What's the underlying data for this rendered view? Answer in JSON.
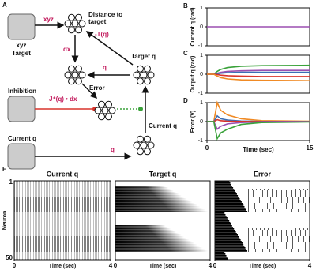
{
  "diagram": {
    "panel": "A",
    "target_box_label": [
      "xyz",
      "Target"
    ],
    "distance_label": [
      "Distance to",
      "target"
    ],
    "target_q_label": "Target q",
    "error_label": "Error",
    "inhibition_label": "Inhibition",
    "current_q_box_label": "Current q",
    "current_q_cluster_label": "Current q",
    "edge_labels": [
      "xyz",
      "-T(q)",
      "dx",
      "q",
      "J⁺(q) • dx",
      "q"
    ]
  },
  "chart_data": [
    {
      "type": "line",
      "panel": "B",
      "ylabel": "Current q (rad)",
      "xlim": [
        0,
        15
      ],
      "ylim": [
        -1,
        1
      ],
      "yticks": [
        -1,
        0,
        1
      ],
      "x": [
        0,
        15
      ],
      "series": [
        {
          "color": "#9b4fb0",
          "values": [
            0,
            0
          ]
        }
      ]
    },
    {
      "type": "line",
      "panel": "C",
      "ylabel": "Output q (rad)",
      "xlim": [
        0,
        15
      ],
      "ylim": [
        -1,
        1
      ],
      "yticks": [
        -1,
        0,
        1
      ],
      "x": [
        0,
        1,
        1.5,
        2,
        3,
        5,
        8,
        15
      ],
      "series": [
        {
          "color": "#3aa23a",
          "values": [
            0,
            0,
            0.15,
            0.25,
            0.35,
            0.42,
            0.45,
            0.47
          ]
        },
        {
          "color": "#9b4fb0",
          "values": [
            0,
            0,
            0.05,
            0.1,
            0.15,
            0.18,
            0.2,
            0.2
          ]
        },
        {
          "color": "#3b6fb6",
          "values": [
            0,
            0,
            0.03,
            0.05,
            0.08,
            0.1,
            0.1,
            0.1
          ]
        },
        {
          "color": "#d9342b",
          "values": [
            0,
            0,
            -0.02,
            -0.05,
            -0.08,
            -0.1,
            -0.12,
            -0.12
          ]
        },
        {
          "color": "#f08a24",
          "values": [
            0,
            0,
            -0.1,
            -0.18,
            -0.25,
            -0.3,
            -0.32,
            -0.34
          ]
        }
      ]
    },
    {
      "type": "line",
      "panel": "D",
      "ylabel": "Error (V)",
      "xlabel": "Time (sec)",
      "xlim": [
        0,
        15
      ],
      "ylim": [
        -1,
        1
      ],
      "yticks": [
        -1,
        0,
        1
      ],
      "xticks": [
        0,
        15
      ],
      "x": [
        0,
        1,
        1.5,
        2,
        3,
        5,
        8,
        15
      ],
      "series": [
        {
          "color": "#f08a24",
          "values": [
            0,
            0,
            1,
            0.6,
            0.35,
            0.15,
            0.05,
            0.02
          ]
        },
        {
          "color": "#3b6fb6",
          "values": [
            0,
            0,
            0.3,
            0.15,
            0.08,
            0.03,
            0.01,
            0
          ]
        },
        {
          "color": "#d9342b",
          "values": [
            0,
            0,
            0.1,
            0.05,
            0.02,
            0.01,
            0,
            0
          ]
        },
        {
          "color": "#9b4fb0",
          "values": [
            0,
            0,
            -0.4,
            -0.25,
            -0.12,
            -0.05,
            -0.02,
            0
          ]
        },
        {
          "color": "#3aa23a",
          "values": [
            0,
            0,
            -0.9,
            -0.6,
            -0.4,
            -0.15,
            -0.05,
            -0.02
          ]
        }
      ]
    },
    {
      "type": "raster",
      "panel": "E",
      "title": "Current q",
      "ylabel": "Neuron",
      "xlabel": "Time (sec)",
      "xlim": [
        0,
        4
      ],
      "xticks": [
        0,
        4
      ],
      "ylim": [
        1,
        50
      ],
      "yticks": [
        1,
        50
      ]
    },
    {
      "type": "raster",
      "title": "Target q",
      "xlabel": "Time (sec)",
      "xlim": [
        0,
        4
      ],
      "xticks": [
        0,
        4
      ],
      "ylim": [
        1,
        50
      ]
    },
    {
      "type": "raster",
      "title": "Error",
      "xlabel": "Time (sec)",
      "xlim": [
        0,
        4
      ],
      "xticks": [
        0,
        4
      ],
      "ylim": [
        1,
        50
      ]
    }
  ]
}
